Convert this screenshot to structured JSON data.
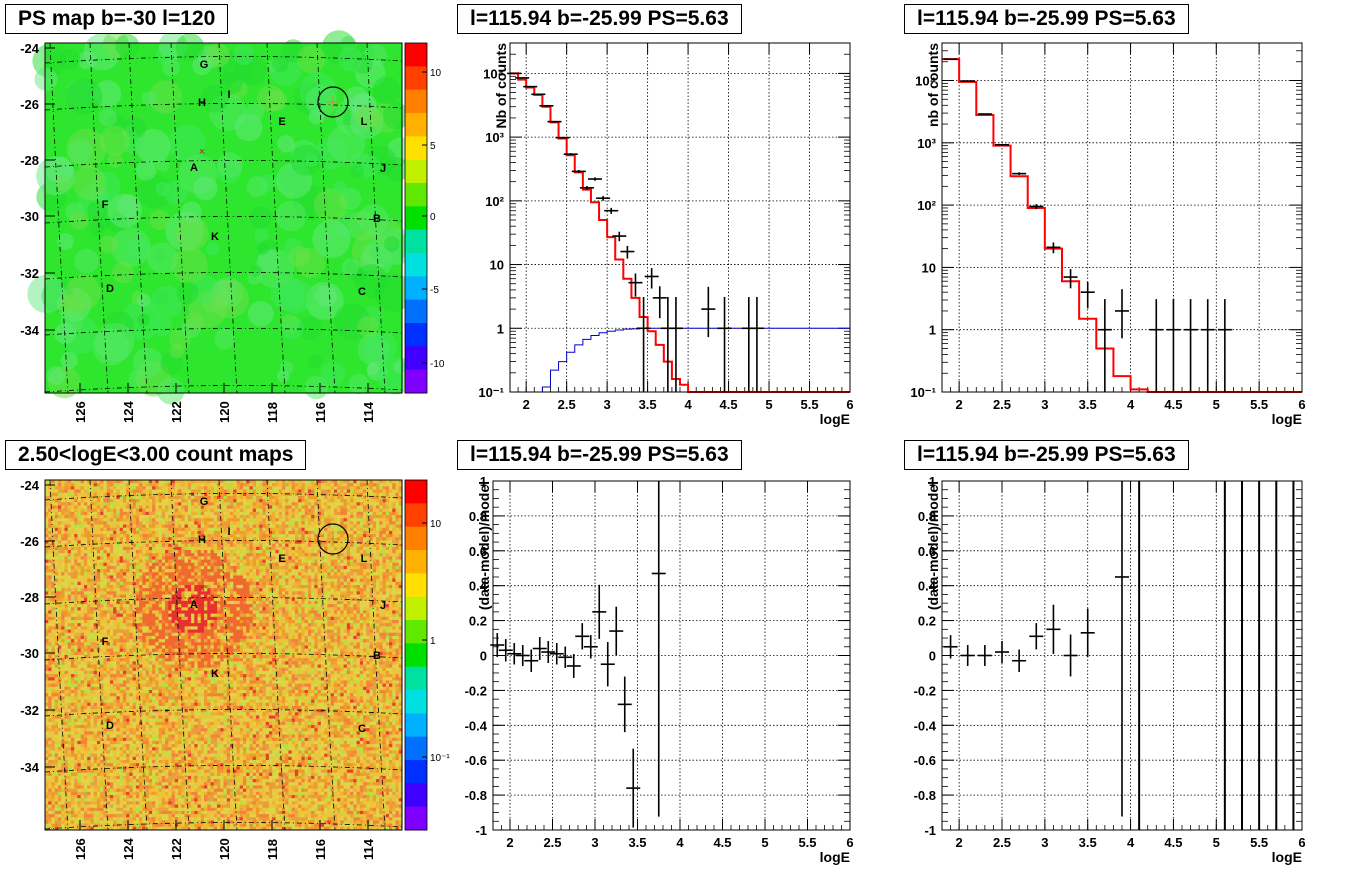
{
  "colors": {
    "data_marker": "#000000",
    "model_line": "#ff0000",
    "exposure_line": "#0000cc",
    "grid_line": "#000000",
    "ref_line": "#ffffff"
  },
  "pads": {
    "map_ps": {
      "title": "PS map b=-30 l=120",
      "y_ticks": [
        "-24",
        "-26",
        "-28",
        "-30",
        "-32",
        "-34"
      ],
      "x_ticks": [
        "126",
        "124",
        "122",
        "120",
        "118",
        "116",
        "114"
      ],
      "palette_ticks": [
        "10",
        "5",
        "0",
        "-5",
        "-10"
      ],
      "palette_scale": "linear",
      "source_labels": [
        "G",
        "H",
        "I",
        "E",
        "L",
        "A",
        "J",
        "F",
        "B",
        "K",
        "D",
        "C"
      ]
    },
    "map_counts": {
      "title": "2.50<logE<3.00 count maps",
      "y_ticks": [
        "-24",
        "-26",
        "-28",
        "-30",
        "-32",
        "-34"
      ],
      "x_ticks": [
        "126",
        "124",
        "122",
        "120",
        "118",
        "116",
        "114"
      ],
      "palette_ticks": [
        "10",
        "1",
        "10⁻¹"
      ],
      "palette_scale": "log",
      "source_labels": [
        "G",
        "H",
        "I",
        "E",
        "L",
        "A",
        "J",
        "F",
        "B",
        "K",
        "D",
        "C"
      ]
    }
  },
  "chart_data": [
    {
      "type": "line",
      "title": "l=115.94 b=-25.99 PS=5.63",
      "xlabel": "logE",
      "ylabel": "Nb of counts",
      "xlim": [
        1.8,
        6.0
      ],
      "ylim": [
        0.1,
        30000
      ],
      "yscale": "log",
      "grid": true,
      "x_tick_labels": [
        "2",
        "2.5",
        "3",
        "3.5",
        "4",
        "4.5",
        "5",
        "5.5",
        "6"
      ],
      "y_tick_labels": [
        "10⁻¹",
        "1",
        "10",
        "10²",
        "10³",
        "10⁴"
      ],
      "series": [
        {
          "kind": "step",
          "edges": [
            1.8,
            1.9,
            2.0,
            2.1,
            2.2,
            2.3,
            2.4,
            2.5,
            2.6,
            2.7,
            2.8,
            2.9,
            3.0,
            3.1,
            3.2,
            3.3,
            3.4,
            3.5,
            3.6,
            3.7,
            3.8,
            3.9,
            4.0,
            6.0
          ],
          "values": [
            10000,
            8000,
            6000,
            4600,
            3000,
            1700,
            950,
            520,
            280,
            150,
            95,
            50,
            27,
            12,
            6,
            3,
            1.5,
            0.9,
            0.55,
            0.3,
            0.16,
            0.13,
            0.1
          ]
        },
        {
          "kind": "step",
          "edges": [
            1.8,
            2.2,
            2.3,
            2.4,
            2.5,
            2.6,
            2.7,
            2.8,
            2.9,
            3.0,
            3.1,
            3.2,
            3.3,
            3.4,
            3.5,
            3.6,
            3.8,
            4.0,
            6.0
          ],
          "values": [
            0.1,
            0.12,
            0.22,
            0.3,
            0.42,
            0.55,
            0.67,
            0.77,
            0.85,
            0.9,
            0.94,
            0.97,
            0.98,
            0.99,
            1.0,
            1.0,
            1.0,
            1.0
          ]
        },
        {
          "kind": "points",
          "x": [
            1.85,
            1.95,
            2.05,
            2.15,
            2.25,
            2.35,
            2.45,
            2.55,
            2.65,
            2.75,
            2.85,
            2.95,
            3.05,
            3.15,
            3.25,
            3.35,
            3.45,
            3.55,
            3.65,
            3.75,
            3.85,
            4.25,
            4.45,
            4.75,
            4.85
          ],
          "y": [
            10000,
            8500,
            6200,
            4700,
            3100,
            1750,
            980,
            540,
            290,
            160,
            220,
            110,
            70,
            28,
            16,
            5.2,
            1.0,
            6.5,
            3.0,
            1.0,
            1.0,
            2.0,
            1.0,
            1.0,
            1.0
          ]
        }
      ]
    },
    {
      "type": "line",
      "title": "l=115.94 b=-25.99 PS=5.63",
      "xlabel": "logE",
      "ylabel": "nb of counts",
      "xlim": [
        1.8,
        6.0
      ],
      "ylim": [
        0.1,
        40000
      ],
      "yscale": "log",
      "grid": true,
      "x_tick_labels": [
        "2",
        "2.5",
        "3",
        "3.5",
        "4",
        "4.5",
        "5",
        "5.5",
        "6"
      ],
      "y_tick_labels": [
        "10⁻¹",
        "1",
        "10",
        "10²",
        "10³",
        "10⁴"
      ],
      "series": [
        {
          "kind": "step",
          "edges": [
            1.8,
            2.0,
            2.2,
            2.4,
            2.6,
            2.8,
            3.0,
            3.2,
            3.4,
            3.6,
            3.8,
            4.0,
            4.2,
            6.0
          ],
          "values": [
            22000,
            9500,
            2800,
            900,
            290,
            90,
            20,
            6,
            1.5,
            0.5,
            0.18,
            0.11,
            0.1
          ]
        },
        {
          "kind": "points",
          "x": [
            1.9,
            2.1,
            2.3,
            2.5,
            2.7,
            2.9,
            3.1,
            3.3,
            3.5,
            3.7,
            3.9,
            4.3,
            4.5,
            4.7,
            4.9,
            5.1
          ],
          "y": [
            22000,
            9800,
            2900,
            930,
            320,
            95,
            21,
            7,
            4,
            1.0,
            2.0,
            1.0,
            1.0,
            1.0,
            1.0,
            1.0
          ]
        }
      ]
    },
    {
      "type": "scatter",
      "title": "l=115.94 b=-25.99 PS=5.63",
      "xlabel": "logE",
      "ylabel": "(data-model)/model",
      "xlim": [
        1.8,
        6.0
      ],
      "ylim": [
        -1,
        1
      ],
      "yscale": "linear",
      "grid": true,
      "x_tick_labels": [
        "2",
        "2.5",
        "3",
        "3.5",
        "4",
        "4.5",
        "5",
        "5.5",
        "6"
      ],
      "y_tick_labels": [
        "-1",
        "-0.8",
        "-0.6",
        "-0.4",
        "-0.2",
        "0",
        "0.2",
        "0.4",
        "0.6",
        "0.8",
        "1"
      ],
      "series": [
        {
          "kind": "points",
          "x": [
            1.85,
            1.95,
            2.05,
            2.15,
            2.25,
            2.35,
            2.45,
            2.55,
            2.65,
            2.75,
            2.85,
            2.95,
            3.05,
            3.15,
            3.25,
            3.35,
            3.45,
            3.75
          ],
          "y": [
            0.06,
            0.03,
            0.01,
            0.0,
            -0.03,
            0.04,
            0.02,
            0.01,
            -0.01,
            -0.06,
            0.11,
            0.05,
            0.25,
            -0.05,
            0.14,
            -0.28,
            -0.76,
            0.47
          ]
        }
      ]
    },
    {
      "type": "scatter",
      "title": "l=115.94 b=-25.99 PS=5.63",
      "xlabel": "logE",
      "ylabel": "(data-model)/model",
      "xlim": [
        1.8,
        6.0
      ],
      "ylim": [
        -1,
        1
      ],
      "yscale": "linear",
      "grid": true,
      "x_tick_labels": [
        "2",
        "2.5",
        "3",
        "3.5",
        "4",
        "4.5",
        "5",
        "5.5",
        "6"
      ],
      "y_tick_labels": [
        "-1",
        "-0.8",
        "-0.6",
        "-0.4",
        "-0.2",
        "0",
        "0.2",
        "0.4",
        "0.6",
        "0.8",
        "1"
      ],
      "series": [
        {
          "kind": "points",
          "x": [
            1.9,
            2.1,
            2.3,
            2.5,
            2.7,
            2.9,
            3.1,
            3.3,
            3.5,
            3.9
          ],
          "y": [
            0.05,
            0.0,
            0.0,
            0.02,
            -0.03,
            0.11,
            0.15,
            0.0,
            0.13,
            0.45
          ]
        }
      ]
    }
  ]
}
